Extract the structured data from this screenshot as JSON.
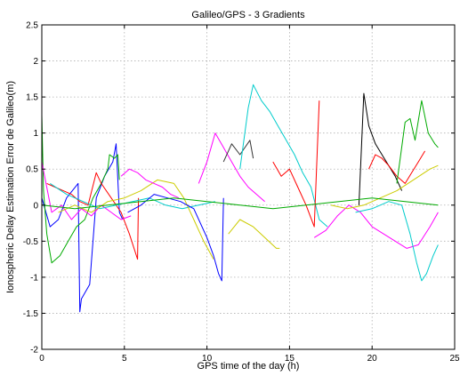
{
  "chart_data": {
    "type": "line",
    "title": "Galileo/GPS - 3 Gradients",
    "xlabel": "GPS time of the day (h)",
    "ylabel": "Ionospheric Delay Estimation Error de Galileo(m)",
    "xlim": [
      0,
      25
    ],
    "ylim": [
      -2,
      2.5
    ],
    "xticks": [
      0,
      5,
      10,
      15,
      20,
      25
    ],
    "yticks": [
      -2,
      -1.5,
      -1,
      -0.5,
      0,
      0.5,
      1,
      1.5,
      2,
      2.5
    ],
    "xtick_labels": [
      "0",
      "5",
      "10",
      "15",
      "20",
      "25"
    ],
    "ytick_labels": [
      "-2",
      "-1.5",
      "-1",
      "-0.5",
      "0",
      "0.5",
      "1",
      "1.5",
      "2",
      "2.5"
    ],
    "grid": true,
    "series": [
      {
        "color": "#0000ff",
        "x": [
          0.0,
          0.5,
          1.0,
          1.5,
          2.2,
          2.3,
          2.4,
          2.9,
          3.3,
          3.8,
          4.3,
          4.5,
          4.7,
          4.9
        ],
        "y": [
          0.1,
          -0.3,
          -0.2,
          0.1,
          0.3,
          -1.48,
          -1.3,
          -1.1,
          0.1,
          0.4,
          0.6,
          0.85,
          -0.1,
          -0.2
        ]
      },
      {
        "color": "#00aa00",
        "x": [
          0.0,
          0.1,
          0.3,
          0.6,
          1.1,
          1.6,
          2.1,
          2.6,
          3.1,
          3.6,
          4.0,
          4.1,
          4.4,
          4.6,
          4.7
        ],
        "y": [
          1.25,
          0.2,
          -0.4,
          -0.8,
          -0.7,
          -0.5,
          -0.3,
          -0.2,
          0.1,
          0.3,
          0.5,
          0.7,
          0.65,
          0.7,
          0.35
        ]
      },
      {
        "color": "#ff0000",
        "x": [
          0.3,
          0.8,
          1.3,
          1.8,
          2.3,
          2.8,
          3.3,
          3.6,
          4.2,
          4.8,
          5.3,
          5.8,
          5.85
        ],
        "y": [
          0.3,
          0.25,
          0.2,
          0.15,
          0.05,
          0.0,
          0.45,
          0.3,
          0.1,
          -0.1,
          -0.4,
          -0.75,
          0.1
        ]
      },
      {
        "color": "#ff00ff",
        "x": [
          0.0,
          0.6,
          1.2,
          1.8,
          2.4,
          3.0,
          3.6,
          4.2,
          4.8,
          5.4
        ],
        "y": [
          0.6,
          -0.1,
          0.0,
          -0.2,
          -0.05,
          -0.15,
          0.0,
          -0.1,
          -0.2,
          -0.15
        ]
      },
      {
        "color": "#00cccc",
        "x": [
          0.5,
          1.5,
          2.5,
          3.5,
          4.5,
          5.5,
          6.5,
          7.5,
          8.5,
          9.5,
          10.5
        ],
        "y": [
          0.3,
          0.15,
          0.05,
          -0.05,
          0.0,
          0.05,
          0.1,
          0.0,
          -0.05,
          0.0,
          0.05
        ]
      },
      {
        "color": "#cccc00",
        "x": [
          1.0,
          2.0,
          3.0,
          4.0,
          5.0,
          6.0,
          7.0,
          8.0,
          8.6,
          9.2,
          9.8,
          10.4
        ],
        "y": [
          -0.1,
          0.0,
          -0.1,
          0.05,
          0.1,
          0.2,
          0.35,
          0.3,
          0.1,
          -0.2,
          -0.5,
          -0.75
        ]
      },
      {
        "color": "#ff00ff",
        "x": [
          4.8,
          5.3,
          5.8,
          6.3,
          6.8,
          7.3,
          7.8,
          8.3
        ],
        "y": [
          0.4,
          0.5,
          0.45,
          0.35,
          0.3,
          0.25,
          0.15,
          0.1
        ]
      },
      {
        "color": "#0000ff",
        "x": [
          5.2,
          6.0,
          6.8,
          7.6,
          8.4,
          9.2,
          10.0,
          10.4,
          10.7,
          10.9,
          11.0
        ],
        "y": [
          -0.1,
          0.0,
          0.15,
          0.1,
          0.05,
          -0.05,
          -0.45,
          -0.7,
          -0.95,
          -1.05,
          0.1
        ]
      },
      {
        "color": "#ff00ff",
        "x": [
          9.5,
          10.0,
          10.5,
          11.0,
          11.5,
          12.0,
          12.5,
          13.0,
          13.5
        ],
        "y": [
          0.3,
          0.6,
          1.0,
          0.8,
          0.6,
          0.4,
          0.25,
          0.15,
          0.05
        ]
      },
      {
        "color": "#333333",
        "x": [
          11.0,
          11.5,
          12.0,
          12.3,
          12.6,
          12.8
        ],
        "y": [
          0.6,
          0.85,
          0.7,
          0.8,
          0.9,
          0.65
        ]
      },
      {
        "color": "#cccc00",
        "x": [
          11.3,
          12.0,
          12.8,
          13.5,
          14.2,
          14.4
        ],
        "y": [
          -0.4,
          -0.2,
          -0.3,
          -0.45,
          -0.6,
          -0.6
        ]
      },
      {
        "color": "#00cccc",
        "x": [
          12.0,
          12.5,
          12.8,
          13.3,
          13.8,
          14.3,
          14.8,
          15.3,
          15.8,
          16.3,
          16.8,
          17.3
        ],
        "y": [
          0.5,
          1.35,
          1.67,
          1.45,
          1.3,
          1.1,
          0.9,
          0.7,
          0.45,
          0.25,
          -0.2,
          -0.3
        ]
      },
      {
        "color": "#ff0000",
        "x": [
          14.0,
          14.5,
          15.0,
          15.5,
          16.0,
          16.5,
          16.8
        ],
        "y": [
          0.6,
          0.4,
          0.5,
          0.25,
          0.0,
          -0.3,
          1.45
        ]
      },
      {
        "color": "#ff00ff",
        "x": [
          16.5,
          17.2,
          17.9,
          18.6,
          19.3,
          20.0,
          20.7,
          21.4,
          22.1,
          22.8,
          23.5,
          24.0
        ],
        "y": [
          -0.45,
          -0.35,
          -0.15,
          0.0,
          -0.1,
          -0.3,
          -0.4,
          -0.5,
          -0.6,
          -0.55,
          -0.3,
          -0.1
        ]
      },
      {
        "color": "#000000",
        "x": [
          19.2,
          19.5,
          19.8,
          20.2,
          20.6,
          21.0,
          21.4,
          21.8
        ],
        "y": [
          0.0,
          1.55,
          1.1,
          0.85,
          0.7,
          0.55,
          0.4,
          0.2
        ]
      },
      {
        "color": "#ff0000",
        "x": [
          19.8,
          20.2,
          20.6,
          21.0,
          21.5,
          22.0,
          22.4,
          22.8,
          23.2
        ],
        "y": [
          0.5,
          0.7,
          0.65,
          0.55,
          0.4,
          0.3,
          0.45,
          0.6,
          0.75
        ]
      },
      {
        "color": "#00aa00",
        "x": [
          21.5,
          22.0,
          22.3,
          22.6,
          23.0,
          23.4,
          23.8,
          24.0
        ],
        "y": [
          0.3,
          1.15,
          1.2,
          0.9,
          1.45,
          1.0,
          0.85,
          0.8
        ]
      },
      {
        "color": "#00cccc",
        "x": [
          19.0,
          20.0,
          21.0,
          21.8,
          22.3,
          22.7,
          23.0,
          23.3,
          23.7,
          24.0
        ],
        "y": [
          -0.1,
          -0.05,
          0.05,
          0.0,
          -0.4,
          -0.8,
          -1.05,
          -0.95,
          -0.7,
          -0.55
        ]
      },
      {
        "color": "#cccc00",
        "x": [
          17.5,
          18.5,
          19.5,
          20.5,
          21.5,
          22.5,
          23.5,
          24.0
        ],
        "y": [
          0.0,
          -0.05,
          0.0,
          0.1,
          0.2,
          0.35,
          0.5,
          0.55
        ]
      },
      {
        "color": "#00aa00",
        "x": [
          0.0,
          2.0,
          4.0,
          6.0,
          8.0,
          10.0,
          12.0,
          14.0,
          16.0,
          18.0,
          20.0,
          22.0,
          24.0
        ],
        "y": [
          0.0,
          -0.05,
          0.0,
          0.05,
          0.1,
          0.05,
          0.0,
          -0.05,
          0.0,
          0.05,
          0.1,
          0.05,
          0.0
        ]
      }
    ]
  }
}
